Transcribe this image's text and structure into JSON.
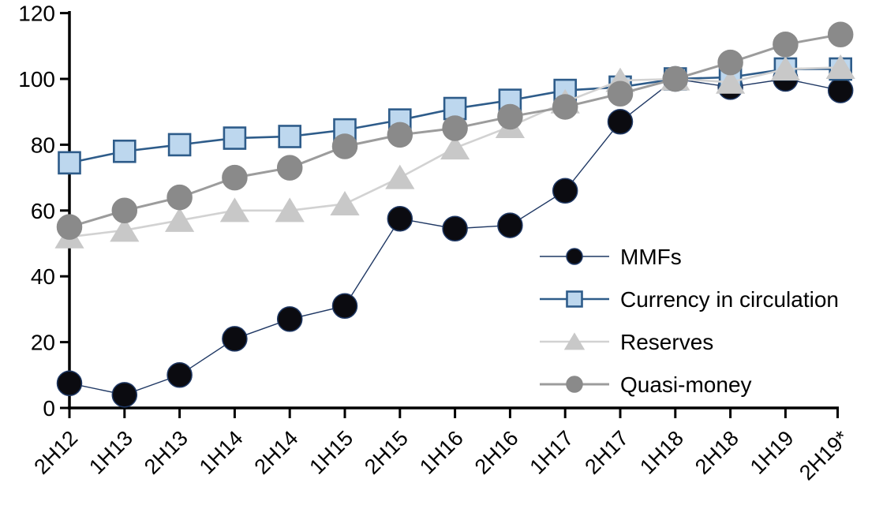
{
  "chart_data": {
    "type": "line",
    "title": "",
    "categories": [
      "2H12",
      "1H13",
      "2H13",
      "1H14",
      "2H14",
      "1H15",
      "2H15",
      "1H16",
      "2H16",
      "1H17",
      "2H17",
      "1H18",
      "2H18",
      "1H19",
      "2H19*"
    ],
    "series": [
      {
        "name": "MMFs",
        "marker": "circle",
        "marker_fill": "#0b0b10",
        "marker_stroke": "#1f3864",
        "line_color": "#1f3864",
        "line_width": 1.4,
        "values": [
          7.5,
          4,
          10,
          21,
          27,
          31,
          57.5,
          54.5,
          55.5,
          66,
          87,
          100,
          97.5,
          100,
          96.5
        ]
      },
      {
        "name": "Currency in circulation",
        "marker": "square",
        "marker_fill": "#bdd7ee",
        "marker_stroke": "#2e5c8a",
        "line_color": "#2e5c8a",
        "line_width": 2.6,
        "values": [
          74.5,
          78,
          80,
          82,
          82.5,
          84.5,
          87.5,
          91,
          93.5,
          96.5,
          97.5,
          100,
          100.5,
          103,
          103
        ]
      },
      {
        "name": "Reserves",
        "marker": "triangle",
        "marker_fill": "#c8c8c8",
        "marker_stroke": "#c8c8c8",
        "line_color": "#d2d2d2",
        "line_width": 2.6,
        "values": [
          52,
          54,
          57,
          60,
          60,
          62,
          70,
          79,
          85.5,
          93,
          99.5,
          100,
          99,
          103,
          103.5
        ]
      },
      {
        "name": "Quasi-money",
        "marker": "circle",
        "marker_fill": "#8a8a8a",
        "marker_stroke": "#8a8a8a",
        "line_color": "#9c9c9c",
        "line_width": 3,
        "values": [
          55,
          60,
          64,
          70,
          73,
          79.5,
          83,
          85,
          88.5,
          91.5,
          95.5,
          100,
          105,
          110.5,
          113.5
        ]
      }
    ],
    "xlabel": "",
    "ylabel": "",
    "ylim": [
      0,
      120
    ],
    "yticks": [
      "0",
      "20",
      "40",
      "60",
      "80",
      "100",
      "120"
    ],
    "ytick_values": [
      0,
      20,
      40,
      60,
      80,
      100,
      120
    ],
    "grid": false,
    "legend_position": "inside-right",
    "axis_color": "#000000",
    "background_color": "#ffffff"
  }
}
